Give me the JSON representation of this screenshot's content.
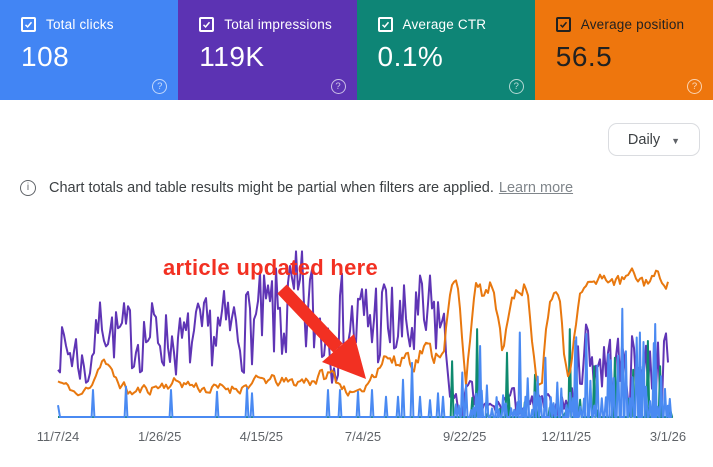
{
  "cards": [
    {
      "label": "Total clicks",
      "value": "108",
      "bg": "#4285f4",
      "fg": "#ffffff"
    },
    {
      "label": "Total impressions",
      "value": "119K",
      "bg": "#5c33b3",
      "fg": "#ffffff"
    },
    {
      "label": "Average CTR",
      "value": "0.1%",
      "bg": "#0e8576",
      "fg": "#ffffff"
    },
    {
      "label": "Average position",
      "value": "56.5",
      "bg": "#ee760d",
      "fg": "#212121"
    }
  ],
  "controls": {
    "date_granularity": "Daily"
  },
  "icons": {
    "help": "?",
    "info": "i",
    "caret": "▼"
  },
  "notice": {
    "text": "Chart totals and table results might be partial when filters are applied.",
    "link": "Learn more"
  },
  "annotation": {
    "text": "article updated here",
    "color": "#f23022"
  },
  "chart_data": {
    "type": "line",
    "title": "",
    "x_ticks": [
      "11/7/24",
      "1/26/25",
      "4/15/25",
      "7/4/25",
      "9/22/25",
      "12/11/25",
      "3/1/26"
    ],
    "x_start": "11/7/24",
    "x_end": "3/1/26",
    "y_axis": "unlabeled in UI; series values expressed as fraction 0-1 of plot height",
    "grid": false,
    "legend": "none (colors match the metric cards)",
    "series": [
      {
        "name": "Total impressions",
        "metric_total": "119K",
        "color": "#5f35b5",
        "style": "envelope",
        "seed": 7,
        "smooth": 0.15,
        "amp_mult": 1.7,
        "keypoints": [
          [
            0,
            0.42,
            0.1
          ],
          [
            0.03,
            0.38,
            0.12
          ],
          [
            0.049,
            0.24,
            0.06
          ],
          [
            0.069,
            0.6,
            0.08
          ],
          [
            0.085,
            0.5,
            0.12
          ],
          [
            0.12,
            0.46,
            0.15
          ],
          [
            0.16,
            0.5,
            0.14
          ],
          [
            0.2,
            0.42,
            0.13
          ],
          [
            0.24,
            0.48,
            0.14
          ],
          [
            0.28,
            0.52,
            0.16
          ],
          [
            0.32,
            0.55,
            0.18
          ],
          [
            0.37,
            0.6,
            0.24
          ],
          [
            0.4,
            0.62,
            0.26
          ],
          [
            0.44,
            0.55,
            0.22
          ],
          [
            0.48,
            0.52,
            0.2
          ],
          [
            0.52,
            0.58,
            0.23
          ],
          [
            0.56,
            0.5,
            0.2
          ],
          [
            0.6,
            0.54,
            0.21
          ],
          [
            0.625,
            0.6,
            0.2
          ],
          [
            0.636,
            0.4,
            0.12
          ],
          [
            0.648,
            0.08,
            0.05
          ],
          [
            0.66,
            0.05,
            0.04
          ],
          [
            0.675,
            0.15,
            0.06
          ],
          [
            0.69,
            0.05,
            0.04
          ],
          [
            0.72,
            0.05,
            0.04
          ],
          [
            0.74,
            0.12,
            0.06
          ],
          [
            0.76,
            0.05,
            0.04
          ],
          [
            0.79,
            0.08,
            0.05
          ],
          [
            0.82,
            0.05,
            0.04
          ],
          [
            0.845,
            0.12,
            0.08
          ],
          [
            0.862,
            0.45,
            0.16
          ],
          [
            0.88,
            0.34,
            0.15
          ],
          [
            0.92,
            0.28,
            0.15
          ],
          [
            0.96,
            0.3,
            0.16
          ],
          [
            1,
            0.3,
            0.14
          ]
        ]
      },
      {
        "name": "Average CTR",
        "metric_total": "0.1%",
        "color": "#0e8a6e",
        "style": "spikes",
        "seed": 31,
        "spikes": [
          [
            0.646,
            0.33
          ],
          [
            0.687,
            0.52
          ],
          [
            0.736,
            0.38
          ],
          [
            0.782,
            0.25
          ],
          [
            0.839,
            0.52
          ],
          [
            0.879,
            0.3
          ],
          [
            0.913,
            0.35
          ],
          [
            0.943,
            0.28
          ],
          [
            0.967,
            0.45
          ],
          [
            0.987,
            0.3
          ]
        ],
        "dense": [
          {
            "t0": 0.655,
            "t1": 1,
            "gap_min": 8,
            "gap_max": 18,
            "hmin": 0.02,
            "hmax": 0.14,
            "seed": 31
          }
        ]
      },
      {
        "name": "Average position",
        "metric_total": "56.5",
        "color": "#e8780f",
        "style": "envelope",
        "seed": 11,
        "smooth": 0.55,
        "amp_mult": 2.2,
        "keypoints": [
          [
            0,
            0.21,
            0.02
          ],
          [
            0.02,
            0.17,
            0.02
          ],
          [
            0.036,
            0.12,
            0.02
          ],
          [
            0.055,
            0.2,
            0.02
          ],
          [
            0.074,
            0.35,
            0.02
          ],
          [
            0.09,
            0.24,
            0.03
          ],
          [
            0.12,
            0.14,
            0.03
          ],
          [
            0.16,
            0.18,
            0.03
          ],
          [
            0.2,
            0.21,
            0.03
          ],
          [
            0.25,
            0.16,
            0.03
          ],
          [
            0.3,
            0.18,
            0.03
          ],
          [
            0.34,
            0.22,
            0.03
          ],
          [
            0.38,
            0.2,
            0.03
          ],
          [
            0.42,
            0.23,
            0.04
          ],
          [
            0.45,
            0.25,
            0.04
          ],
          [
            0.465,
            0.19,
            0.03
          ],
          [
            0.48,
            0.14,
            0.02
          ],
          [
            0.495,
            0.13,
            0.02
          ],
          [
            0.51,
            0.22,
            0.04
          ],
          [
            0.525,
            0.33,
            0.05
          ],
          [
            0.54,
            0.37,
            0.05
          ],
          [
            0.555,
            0.3,
            0.05
          ],
          [
            0.57,
            0.38,
            0.05
          ],
          [
            0.585,
            0.33,
            0.05
          ],
          [
            0.6,
            0.42,
            0.05
          ],
          [
            0.615,
            0.36,
            0.05
          ],
          [
            0.632,
            0.42,
            0.04
          ],
          [
            0.645,
            0.76,
            0.04
          ],
          [
            0.655,
            0.78,
            0.04
          ],
          [
            0.663,
            0.45,
            0.04
          ],
          [
            0.669,
            0.22,
            0.03
          ],
          [
            0.677,
            0.56,
            0.04
          ],
          [
            0.685,
            0.75,
            0.04
          ],
          [
            0.7,
            0.72,
            0.05
          ],
          [
            0.712,
            0.78,
            0.04
          ],
          [
            0.721,
            0.55,
            0.05
          ],
          [
            0.729,
            0.34,
            0.04
          ],
          [
            0.737,
            0.6,
            0.05
          ],
          [
            0.745,
            0.78,
            0.04
          ],
          [
            0.757,
            0.72,
            0.05
          ],
          [
            0.768,
            0.78,
            0.04
          ],
          [
            0.777,
            0.5,
            0.05
          ],
          [
            0.785,
            0.22,
            0.03
          ],
          [
            0.793,
            0.22,
            0.03
          ],
          [
            0.801,
            0.55,
            0.05
          ],
          [
            0.812,
            0.72,
            0.04
          ],
          [
            0.822,
            0.74,
            0.04
          ],
          [
            0.829,
            0.38,
            0.04
          ],
          [
            0.837,
            0.23,
            0.03
          ],
          [
            0.845,
            0.45,
            0.04
          ],
          [
            0.853,
            0.72,
            0.04
          ],
          [
            0.863,
            0.8,
            0.03
          ],
          [
            0.88,
            0.78,
            0.04
          ],
          [
            0.9,
            0.83,
            0.03
          ],
          [
            0.92,
            0.79,
            0.04
          ],
          [
            0.94,
            0.84,
            0.03
          ],
          [
            0.96,
            0.8,
            0.04
          ],
          [
            0.98,
            0.84,
            0.03
          ],
          [
            1,
            0.8,
            0.03
          ]
        ]
      },
      {
        "name": "Total clicks",
        "metric_total": "108",
        "color": "#4a8af2",
        "style": "spikes",
        "seed": 21,
        "start_h": 0.07,
        "spikes": [
          [
            0.0574,
            0.16
          ],
          [
            0.1115,
            0.18
          ],
          [
            0.1852,
            0.16
          ],
          [
            0.2607,
            0.15
          ],
          [
            0.3098,
            0.17
          ],
          [
            0.318,
            0.14
          ],
          [
            0.4426,
            0.16
          ],
          [
            0.4623,
            0.16
          ],
          [
            0.4918,
            0.15
          ],
          [
            0.5148,
            0.16
          ],
          [
            0.5377,
            0.12
          ],
          [
            0.5574,
            0.12
          ],
          [
            0.5656,
            0.22
          ],
          [
            0.5803,
            0.32
          ],
          [
            0.5934,
            0.12
          ],
          [
            0.6098,
            0.1
          ],
          [
            0.6229,
            0.14
          ],
          [
            0.6311,
            0.12
          ],
          [
            0.692,
            0.42
          ],
          [
            0.757,
            0.5
          ],
          [
            0.799,
            0.35
          ],
          [
            0.848,
            0.45
          ],
          [
            0.925,
            0.64
          ],
          [
            0.954,
            0.5
          ],
          [
            0.979,
            0.55
          ]
        ],
        "dense": [
          {
            "t0": 0.645,
            "t1": 0.83,
            "gap_min": 2,
            "gap_max": 6,
            "hmin": 0.04,
            "hmax": 0.3,
            "seed": 22
          },
          {
            "t0": 0.83,
            "t1": 1,
            "gap_min": 2,
            "gap_max": 4.5,
            "hmin": 0.06,
            "hmax": 0.5,
            "seed": 23
          }
        ]
      }
    ]
  }
}
